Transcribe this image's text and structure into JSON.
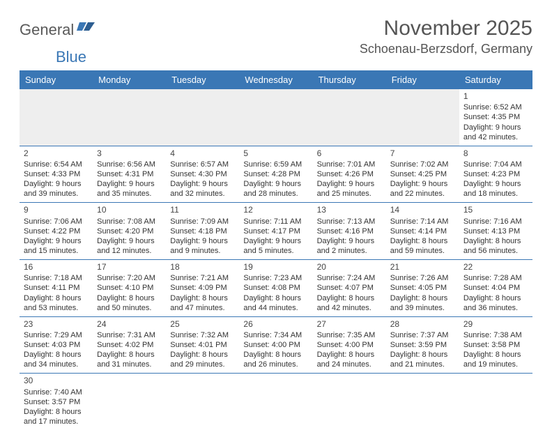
{
  "logo": {
    "part1": "General",
    "part2": "Blue"
  },
  "title": "November 2025",
  "location": "Schoenau-Berzsdorf, Germany",
  "colors": {
    "headerBar": "#3a77b5",
    "rowDivider": "#3a77b5",
    "blankFill": "#eeeeee",
    "text": "#333333",
    "headerText": "#555555"
  },
  "dayNames": [
    "Sunday",
    "Monday",
    "Tuesday",
    "Wednesday",
    "Thursday",
    "Friday",
    "Saturday"
  ],
  "weeks": [
    [
      null,
      null,
      null,
      null,
      null,
      null,
      {
        "n": "1",
        "sr": "Sunrise: 6:52 AM",
        "ss": "Sunset: 4:35 PM",
        "d1": "Daylight: 9 hours",
        "d2": "and 42 minutes."
      }
    ],
    [
      {
        "n": "2",
        "sr": "Sunrise: 6:54 AM",
        "ss": "Sunset: 4:33 PM",
        "d1": "Daylight: 9 hours",
        "d2": "and 39 minutes."
      },
      {
        "n": "3",
        "sr": "Sunrise: 6:56 AM",
        "ss": "Sunset: 4:31 PM",
        "d1": "Daylight: 9 hours",
        "d2": "and 35 minutes."
      },
      {
        "n": "4",
        "sr": "Sunrise: 6:57 AM",
        "ss": "Sunset: 4:30 PM",
        "d1": "Daylight: 9 hours",
        "d2": "and 32 minutes."
      },
      {
        "n": "5",
        "sr": "Sunrise: 6:59 AM",
        "ss": "Sunset: 4:28 PM",
        "d1": "Daylight: 9 hours",
        "d2": "and 28 minutes."
      },
      {
        "n": "6",
        "sr": "Sunrise: 7:01 AM",
        "ss": "Sunset: 4:26 PM",
        "d1": "Daylight: 9 hours",
        "d2": "and 25 minutes."
      },
      {
        "n": "7",
        "sr": "Sunrise: 7:02 AM",
        "ss": "Sunset: 4:25 PM",
        "d1": "Daylight: 9 hours",
        "d2": "and 22 minutes."
      },
      {
        "n": "8",
        "sr": "Sunrise: 7:04 AM",
        "ss": "Sunset: 4:23 PM",
        "d1": "Daylight: 9 hours",
        "d2": "and 18 minutes."
      }
    ],
    [
      {
        "n": "9",
        "sr": "Sunrise: 7:06 AM",
        "ss": "Sunset: 4:22 PM",
        "d1": "Daylight: 9 hours",
        "d2": "and 15 minutes."
      },
      {
        "n": "10",
        "sr": "Sunrise: 7:08 AM",
        "ss": "Sunset: 4:20 PM",
        "d1": "Daylight: 9 hours",
        "d2": "and 12 minutes."
      },
      {
        "n": "11",
        "sr": "Sunrise: 7:09 AM",
        "ss": "Sunset: 4:18 PM",
        "d1": "Daylight: 9 hours",
        "d2": "and 9 minutes."
      },
      {
        "n": "12",
        "sr": "Sunrise: 7:11 AM",
        "ss": "Sunset: 4:17 PM",
        "d1": "Daylight: 9 hours",
        "d2": "and 5 minutes."
      },
      {
        "n": "13",
        "sr": "Sunrise: 7:13 AM",
        "ss": "Sunset: 4:16 PM",
        "d1": "Daylight: 9 hours",
        "d2": "and 2 minutes."
      },
      {
        "n": "14",
        "sr": "Sunrise: 7:14 AM",
        "ss": "Sunset: 4:14 PM",
        "d1": "Daylight: 8 hours",
        "d2": "and 59 minutes."
      },
      {
        "n": "15",
        "sr": "Sunrise: 7:16 AM",
        "ss": "Sunset: 4:13 PM",
        "d1": "Daylight: 8 hours",
        "d2": "and 56 minutes."
      }
    ],
    [
      {
        "n": "16",
        "sr": "Sunrise: 7:18 AM",
        "ss": "Sunset: 4:11 PM",
        "d1": "Daylight: 8 hours",
        "d2": "and 53 minutes."
      },
      {
        "n": "17",
        "sr": "Sunrise: 7:20 AM",
        "ss": "Sunset: 4:10 PM",
        "d1": "Daylight: 8 hours",
        "d2": "and 50 minutes."
      },
      {
        "n": "18",
        "sr": "Sunrise: 7:21 AM",
        "ss": "Sunset: 4:09 PM",
        "d1": "Daylight: 8 hours",
        "d2": "and 47 minutes."
      },
      {
        "n": "19",
        "sr": "Sunrise: 7:23 AM",
        "ss": "Sunset: 4:08 PM",
        "d1": "Daylight: 8 hours",
        "d2": "and 44 minutes."
      },
      {
        "n": "20",
        "sr": "Sunrise: 7:24 AM",
        "ss": "Sunset: 4:07 PM",
        "d1": "Daylight: 8 hours",
        "d2": "and 42 minutes."
      },
      {
        "n": "21",
        "sr": "Sunrise: 7:26 AM",
        "ss": "Sunset: 4:05 PM",
        "d1": "Daylight: 8 hours",
        "d2": "and 39 minutes."
      },
      {
        "n": "22",
        "sr": "Sunrise: 7:28 AM",
        "ss": "Sunset: 4:04 PM",
        "d1": "Daylight: 8 hours",
        "d2": "and 36 minutes."
      }
    ],
    [
      {
        "n": "23",
        "sr": "Sunrise: 7:29 AM",
        "ss": "Sunset: 4:03 PM",
        "d1": "Daylight: 8 hours",
        "d2": "and 34 minutes."
      },
      {
        "n": "24",
        "sr": "Sunrise: 7:31 AM",
        "ss": "Sunset: 4:02 PM",
        "d1": "Daylight: 8 hours",
        "d2": "and 31 minutes."
      },
      {
        "n": "25",
        "sr": "Sunrise: 7:32 AM",
        "ss": "Sunset: 4:01 PM",
        "d1": "Daylight: 8 hours",
        "d2": "and 29 minutes."
      },
      {
        "n": "26",
        "sr": "Sunrise: 7:34 AM",
        "ss": "Sunset: 4:00 PM",
        "d1": "Daylight: 8 hours",
        "d2": "and 26 minutes."
      },
      {
        "n": "27",
        "sr": "Sunrise: 7:35 AM",
        "ss": "Sunset: 4:00 PM",
        "d1": "Daylight: 8 hours",
        "d2": "and 24 minutes."
      },
      {
        "n": "28",
        "sr": "Sunrise: 7:37 AM",
        "ss": "Sunset: 3:59 PM",
        "d1": "Daylight: 8 hours",
        "d2": "and 21 minutes."
      },
      {
        "n": "29",
        "sr": "Sunrise: 7:38 AM",
        "ss": "Sunset: 3:58 PM",
        "d1": "Daylight: 8 hours",
        "d2": "and 19 minutes."
      }
    ],
    [
      {
        "n": "30",
        "sr": "Sunrise: 7:40 AM",
        "ss": "Sunset: 3:57 PM",
        "d1": "Daylight: 8 hours",
        "d2": "and 17 minutes."
      },
      null,
      null,
      null,
      null,
      null,
      null
    ]
  ]
}
